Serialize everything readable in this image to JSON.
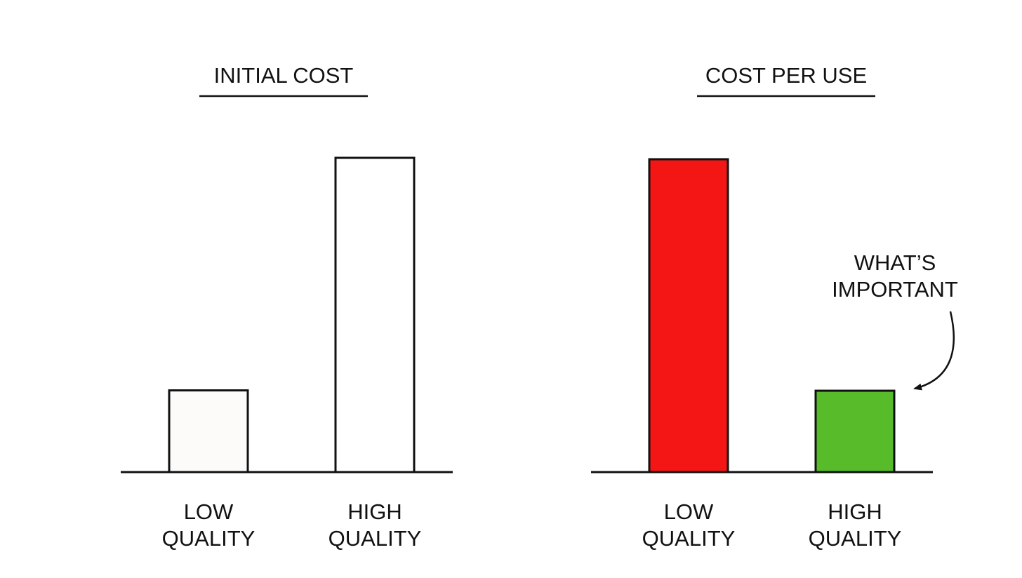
{
  "chart_data": [
    {
      "type": "bar",
      "title": "INITIAL COST",
      "categories": [
        [
          "LOW",
          "QUALITY"
        ],
        [
          "HIGH",
          "QUALITY"
        ]
      ],
      "values": [
        26,
        100
      ],
      "ylim": [
        0,
        100
      ],
      "bar_colors": [
        "#fcfbf9",
        "#ffffff"
      ],
      "grid": false,
      "annotation": null
    },
    {
      "type": "bar",
      "title": "COST PER USE",
      "categories": [
        [
          "LOW",
          "QUALITY"
        ],
        [
          "HIGH",
          "QUALITY"
        ]
      ],
      "values": [
        100,
        26
      ],
      "ylim": [
        0,
        100
      ],
      "bar_colors": [
        "#f41515",
        "#57bb2a"
      ],
      "grid": false,
      "annotation": {
        "lines": [
          "WHAT’S",
          "IMPORTANT"
        ],
        "target_index": 1
      }
    }
  ]
}
